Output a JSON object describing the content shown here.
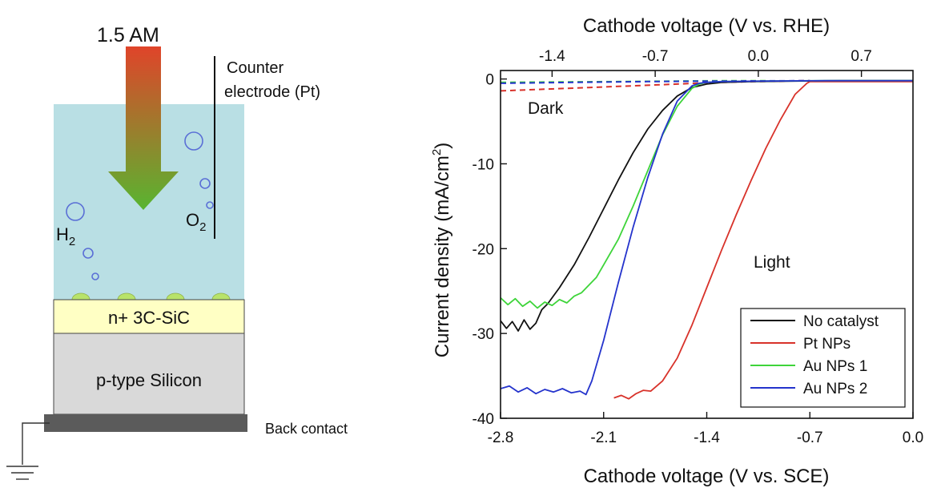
{
  "diagram": {
    "light_label": "1.5 AM",
    "counter_electrode_line1": "Counter",
    "counter_electrode_line2": "electrode (Pt)",
    "h2_label": "H",
    "h2_sub": "2",
    "o2_label": "O",
    "o2_sub": "2",
    "layer_top": "n+ 3C-SiC",
    "layer_bottom": "p-type Silicon",
    "back_contact": "Back contact",
    "colors": {
      "electrolyte": "#b9dfe4",
      "sic_layer": "#ffffc4",
      "silicon_layer": "#d9d9d9",
      "back_contact": "#5b5b5b",
      "arrow_top": "#e0442a",
      "arrow_bottom": "#58b530",
      "bubble": "#5a6fd6",
      "catalyst": "#b8e36a"
    }
  },
  "chart_data": {
    "type": "line",
    "xlabel": "Cathode voltage (V vs. SCE)",
    "x2label": "Cathode voltage (V vs. RHE)",
    "ylabel": "Current density (mA/cm",
    "ylabel_sup": "2",
    "ylabel_close": ")",
    "xlim": [
      -2.8,
      0.0
    ],
    "x2lim": [
      -1.75,
      1.05
    ],
    "ylim": [
      -40,
      1
    ],
    "xticks": [
      "-2.8",
      "-2.1",
      "-1.4",
      "-0.7",
      "0.0"
    ],
    "x2ticks": [
      "-1.4",
      "-0.7",
      "0.0",
      "0.7"
    ],
    "yticks": [
      "0",
      "-10",
      "-20",
      "-30",
      "-40"
    ],
    "annotations": {
      "dark": "Dark",
      "light": "Light"
    },
    "legend_position": "bottom-right",
    "series": [
      {
        "name": "No catalyst",
        "color": "#111111",
        "x": [
          -2.8,
          -2.76,
          -2.72,
          -2.68,
          -2.64,
          -2.6,
          -2.56,
          -2.52,
          -2.48,
          -2.4,
          -2.3,
          -2.2,
          -2.1,
          -2.0,
          -1.9,
          -1.8,
          -1.7,
          -1.6,
          -1.5,
          -1.4,
          -1.3,
          -1.1,
          -0.8,
          -0.5,
          -0.2,
          0.0
        ],
        "y": [
          -28.5,
          -29.4,
          -28.6,
          -29.7,
          -28.4,
          -29.5,
          -28.8,
          -27.2,
          -26.5,
          -24.6,
          -21.9,
          -18.7,
          -15.3,
          -11.9,
          -8.7,
          -5.9,
          -3.7,
          -2.0,
          -1.0,
          -0.6,
          -0.4,
          -0.3,
          -0.25,
          -0.2,
          -0.2,
          -0.2
        ]
      },
      {
        "name": "Pt NPs",
        "color": "#d8322a",
        "x": [
          -2.03,
          -1.98,
          -1.93,
          -1.88,
          -1.83,
          -1.78,
          -1.7,
          -1.6,
          -1.5,
          -1.4,
          -1.3,
          -1.2,
          -1.1,
          -1.0,
          -0.9,
          -0.8,
          -0.72,
          -0.7,
          -0.6,
          -0.4,
          -0.2,
          0.0
        ],
        "y": [
          -37.6,
          -37.3,
          -37.7,
          -37.1,
          -36.7,
          -36.8,
          -35.6,
          -32.9,
          -29.0,
          -24.6,
          -20.2,
          -16.0,
          -12.0,
          -8.2,
          -4.8,
          -1.8,
          -0.5,
          -0.3,
          -0.3,
          -0.3,
          -0.3,
          -0.3
        ]
      },
      {
        "name": "Au NPs 1",
        "color": "#3ed43a",
        "x": [
          -2.8,
          -2.75,
          -2.7,
          -2.65,
          -2.6,
          -2.55,
          -2.5,
          -2.45,
          -2.4,
          -2.35,
          -2.3,
          -2.25,
          -2.2,
          -2.15,
          -2.1,
          -2.0,
          -1.9,
          -1.8,
          -1.7,
          -1.6,
          -1.5,
          -1.45,
          -1.4,
          -1.3,
          -1.0,
          -0.6,
          0.0
        ],
        "y": [
          -25.8,
          -26.6,
          -25.9,
          -26.8,
          -26.2,
          -27.0,
          -26.3,
          -26.7,
          -26.0,
          -26.4,
          -25.6,
          -25.2,
          -24.3,
          -23.4,
          -21.9,
          -18.9,
          -15.0,
          -10.8,
          -6.6,
          -3.2,
          -1.1,
          -0.6,
          -0.4,
          -0.3,
          -0.25,
          -0.2,
          -0.2
        ]
      },
      {
        "name": "Au NPs 2",
        "color": "#2433cc",
        "x": [
          -2.8,
          -2.74,
          -2.68,
          -2.62,
          -2.56,
          -2.5,
          -2.44,
          -2.38,
          -2.32,
          -2.26,
          -2.22,
          -2.18,
          -2.1,
          -2.0,
          -1.9,
          -1.8,
          -1.7,
          -1.6,
          -1.5,
          -1.45,
          -1.4,
          -1.3,
          -1.0,
          -0.6,
          0.0
        ],
        "y": [
          -36.5,
          -36.2,
          -36.9,
          -36.4,
          -37.1,
          -36.6,
          -36.9,
          -36.5,
          -37.0,
          -36.8,
          -37.2,
          -35.6,
          -30.8,
          -24.0,
          -17.5,
          -11.6,
          -6.5,
          -2.6,
          -0.8,
          -0.5,
          -0.4,
          -0.3,
          -0.25,
          -0.2,
          -0.2
        ]
      }
    ],
    "dark_series": [
      {
        "color": "#d8322a",
        "x": [
          -2.8,
          -2.5,
          -2.2,
          -1.9,
          -1.6,
          -1.4,
          -1.2,
          -0.9,
          -0.7
        ],
        "y": [
          -1.4,
          -1.2,
          -1.0,
          -0.8,
          -0.6,
          -0.45,
          -0.35,
          -0.25,
          -0.2
        ]
      },
      {
        "color": "#3ed43a",
        "x": [
          -2.8,
          -2.4,
          -2.0,
          -1.6,
          -1.3,
          -1.0
        ],
        "y": [
          -0.4,
          -0.35,
          -0.3,
          -0.25,
          -0.2,
          -0.2
        ]
      },
      {
        "color": "#2433cc",
        "x": [
          -2.8,
          -2.3,
          -1.8,
          -1.3,
          -0.7
        ],
        "y": [
          -0.5,
          -0.4,
          -0.3,
          -0.25,
          -0.2
        ]
      }
    ]
  }
}
